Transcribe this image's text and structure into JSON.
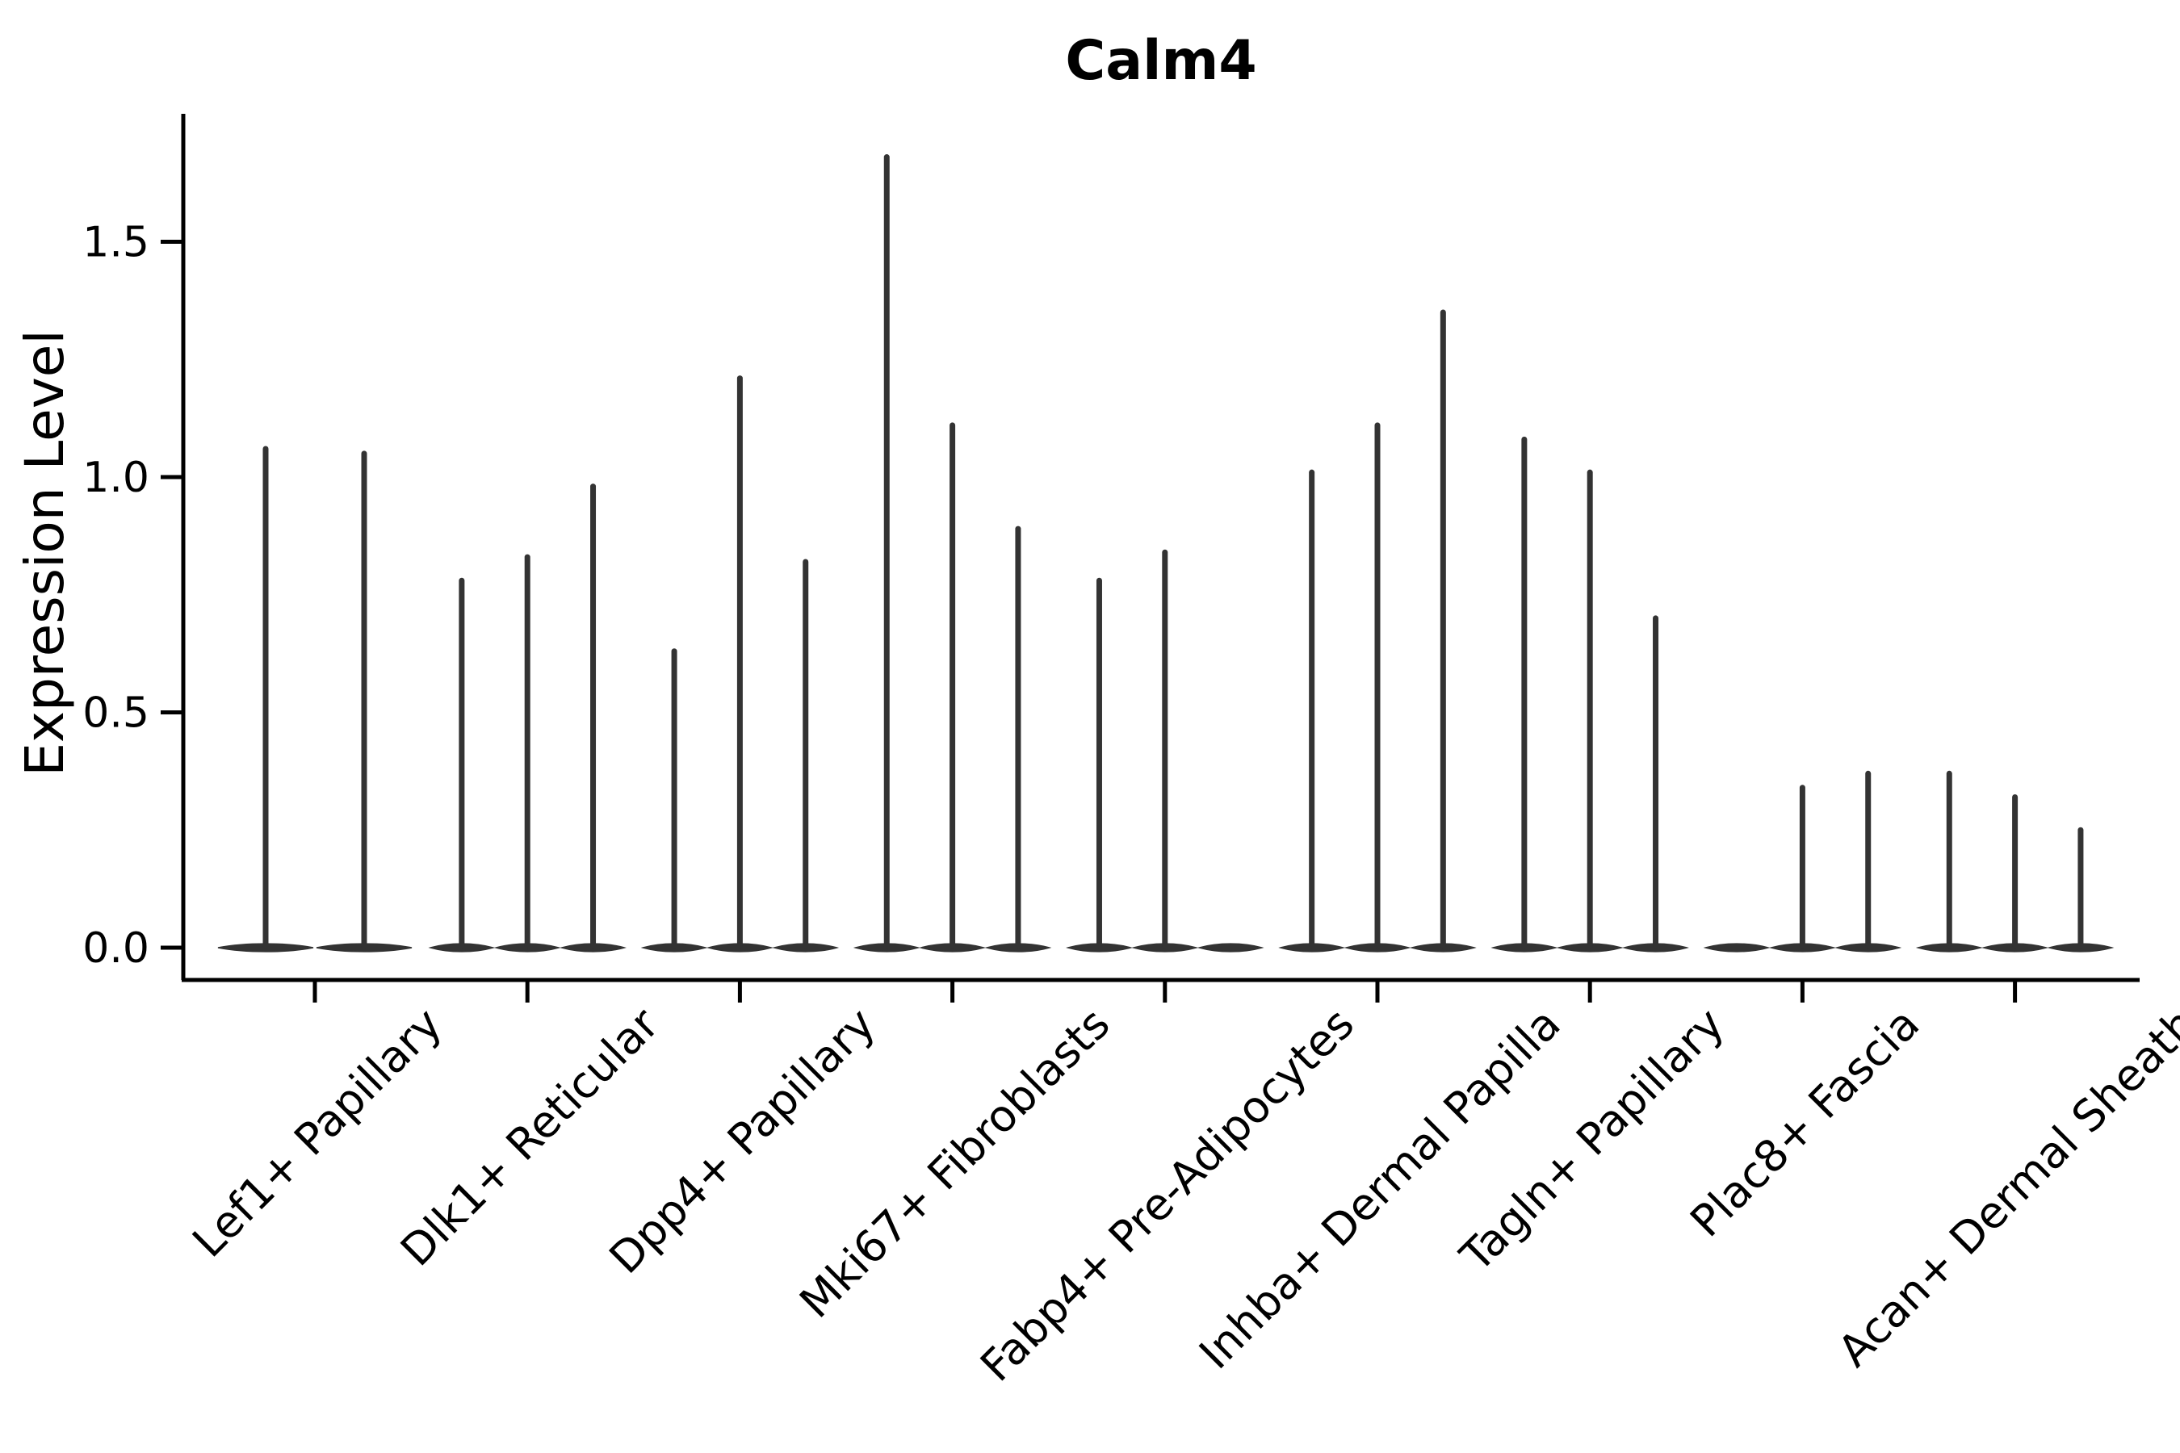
{
  "chart_data": {
    "type": "violin",
    "title": "Calm4",
    "xlabel": "",
    "ylabel": "Expression Level",
    "ylim": [
      0,
      1.8
    ],
    "yticks": [
      0.0,
      0.5,
      1.0,
      1.5
    ],
    "ytick_labels": [
      "0.0",
      "0.5",
      "1.0",
      "1.5"
    ],
    "grid": false,
    "legend": "none",
    "violin_color": "#333333",
    "axis_color": "#000000",
    "background_color": "#ffffff",
    "categories": [
      "Lef1+ Papillary",
      "Dlk1+ Reticular",
      "Dpp4+ Papillary",
      "Mki67+ Fibroblasts",
      "Fabp4+ Pre-Adipocytes",
      "Inhba+ Dermal Papilla",
      "Tagln+ Papillary",
      "Plac8+ Fascia",
      "Acan+ Dermal Sheath"
    ],
    "series": [
      {
        "category": "Lef1+ Papillary",
        "violin_maxima": [
          1.06,
          1.05
        ]
      },
      {
        "category": "Dlk1+ Reticular",
        "violin_maxima": [
          0.78,
          0.83,
          0.98
        ]
      },
      {
        "category": "Dpp4+ Papillary",
        "violin_maxima": [
          0.63,
          1.21,
          0.82
        ]
      },
      {
        "category": "Mki67+ Fibroblasts",
        "violin_maxima": [
          1.68,
          1.11,
          0.89
        ]
      },
      {
        "category": "Fabp4+ Pre-Adipocytes",
        "violin_maxima": [
          0.78,
          0.84,
          0.0
        ]
      },
      {
        "category": "Inhba+ Dermal Papilla",
        "violin_maxima": [
          1.01,
          1.11,
          1.35
        ]
      },
      {
        "category": "Tagln+ Papillary",
        "violin_maxima": [
          1.08,
          1.01,
          0.7
        ]
      },
      {
        "category": "Plac8+ Fascia",
        "violin_maxima": [
          0.0,
          0.34,
          0.37
        ]
      },
      {
        "category": "Acan+ Dermal Sheath",
        "violin_maxima": [
          0.37,
          0.32,
          0.25
        ]
      }
    ]
  }
}
